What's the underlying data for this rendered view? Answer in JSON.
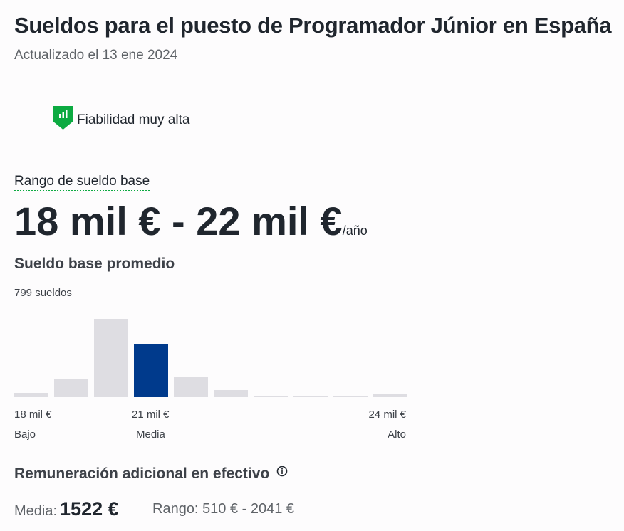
{
  "header": {
    "title": "Sueldos para el puesto de Programador Júnior en España",
    "updated": "Actualizado el 13 ene 2024"
  },
  "reliability": "Fiabilidad muy alta",
  "base_pay": {
    "label": "Rango de sueldo base",
    "range": "18 mil € - 22 mil €",
    "period": "/año"
  },
  "average": {
    "title": "Sueldo base promedio",
    "count": "799 sueldos"
  },
  "histogram": {
    "values": [
      6,
      25,
      110,
      75,
      29,
      10,
      2,
      1,
      1,
      4
    ],
    "highlight": 3,
    "color": "#dedde2",
    "highlight_color": "#003a8c",
    "ticks": [
      {
        "value": "18 mil €",
        "label": "Bajo"
      },
      {
        "value": "21 mil €",
        "label": "Media"
      },
      {
        "value": "24 mil €",
        "label": "Alto"
      }
    ]
  },
  "cash": {
    "title": "Remuneración adicional en efectivo",
    "median_label": "Media:",
    "median": "1522 €",
    "range_label": "Rango:",
    "range": "510 € - 2041 €"
  }
}
